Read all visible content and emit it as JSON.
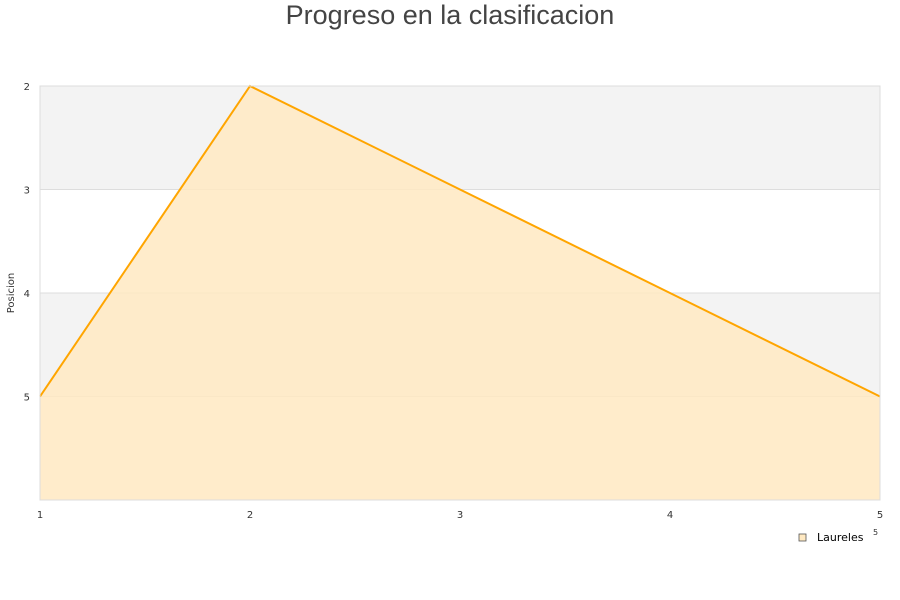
{
  "chart_data": {
    "type": "area",
    "title": "Progreso en la clasificacion",
    "xlabel": "",
    "ylabel": "Posicion",
    "x": [
      1,
      2,
      3,
      4,
      5
    ],
    "series": [
      {
        "name": "Laureles",
        "values": [
          5,
          2,
          3,
          4,
          5
        ]
      }
    ],
    "xticks": [
      "1",
      "2",
      "3",
      "4",
      "5"
    ],
    "yticks": [
      "2",
      "3",
      "4",
      "5"
    ],
    "ylim": [
      2,
      6
    ],
    "y_inverted": true,
    "xlim": [
      1,
      5
    ],
    "grid": "alternating horizontal bands",
    "legend": "bottom-right",
    "stray_label": "5",
    "colors": {
      "line": "#FFA500",
      "fill": "#FFE9C2",
      "band": "#F3F3F3",
      "grid": "#DDDDDD"
    }
  }
}
